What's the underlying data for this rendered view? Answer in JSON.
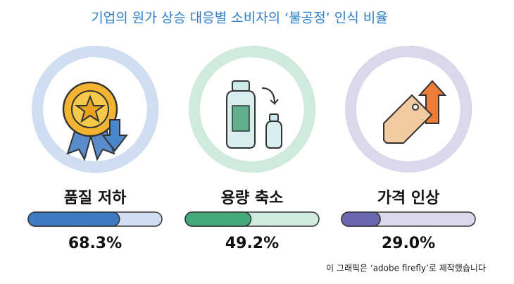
{
  "chart_data": {
    "type": "progress",
    "title": "기업의 원가 상승 대응별 소비자의 ‘불공정’ 인식 비율",
    "categories": [
      "품질 저하",
      "용량 축소",
      "가격 인상"
    ],
    "values": [
      68.3,
      49.2,
      29.0
    ],
    "value_labels": [
      "68.3%",
      "49.2%",
      "29.0%"
    ],
    "colors": [
      "#3d7cc4",
      "#46a97c",
      "#6a68b0"
    ],
    "ylim": [
      0,
      100
    ],
    "footnote": "이 그래픽은 ‘adobe firefly’로 제작했습니다"
  }
}
